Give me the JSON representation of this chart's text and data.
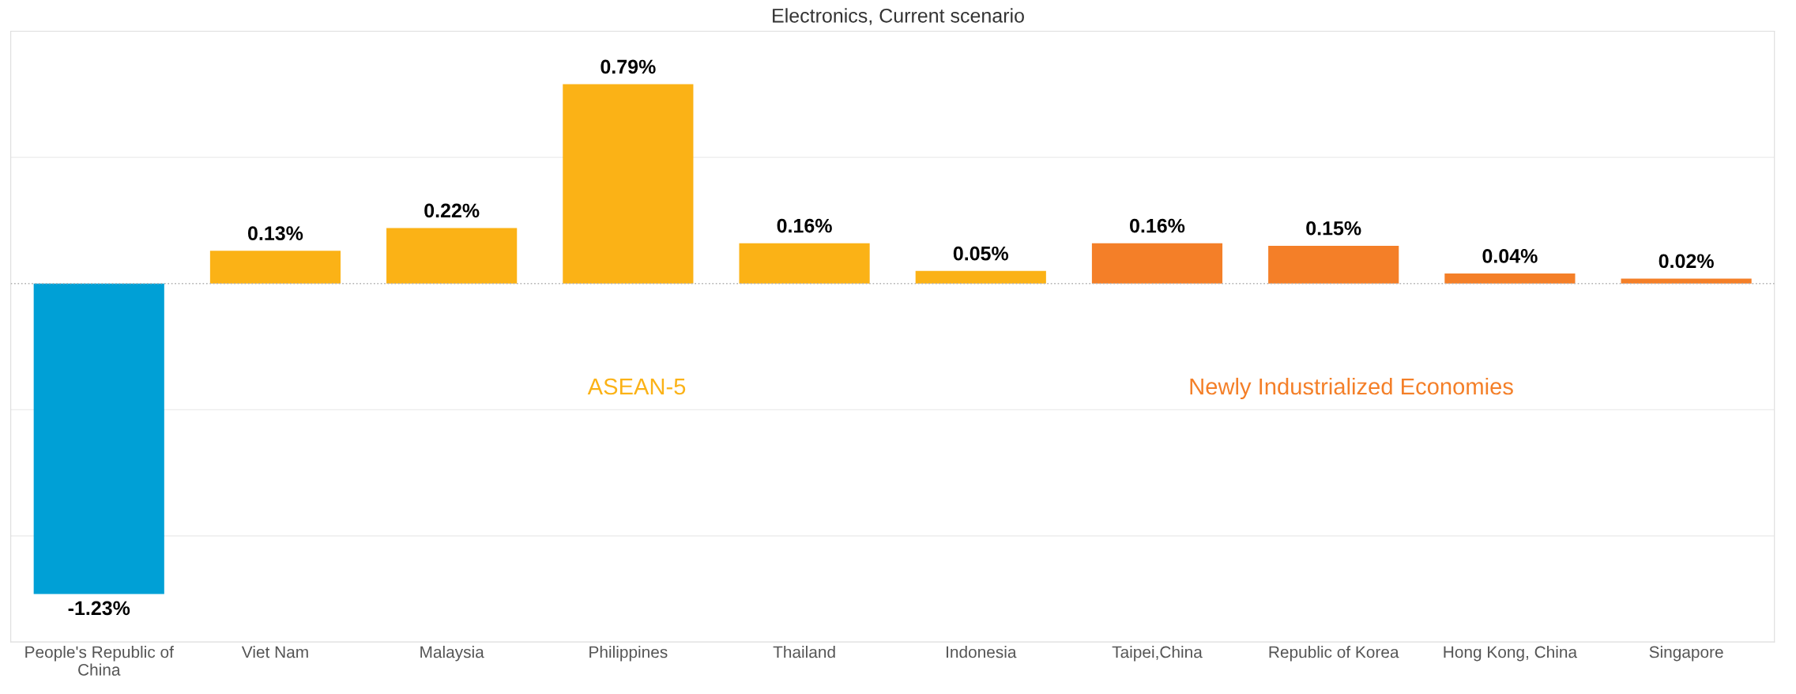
{
  "chart_data": {
    "type": "bar",
    "title": "Electronics, Current scenario",
    "categories": [
      "People's Republic of\nChina",
      "Viet Nam",
      "Malaysia",
      "Philippines",
      "Thailand",
      "Indonesia",
      "Taipei,China",
      "Republic of Korea",
      "Hong Kong, China",
      "Singapore"
    ],
    "values": [
      -1.23,
      0.13,
      0.22,
      0.79,
      0.16,
      0.05,
      0.16,
      0.15,
      0.04,
      0.02
    ],
    "value_labels": [
      "-1.23%",
      "0.13%",
      "0.22%",
      "0.79%",
      "0.16%",
      "0.05%",
      "0.16%",
      "0.15%",
      "0.04%",
      "0.02%"
    ],
    "colors": [
      "#00a0d6",
      "#fbb216",
      "#fbb216",
      "#fbb216",
      "#fbb216",
      "#fbb216",
      "#f47f28",
      "#f47f28",
      "#f47f28",
      "#f47f28"
    ],
    "ylim": [
      -1.42,
      1.0
    ],
    "yticks": [
      {
        "value": -1.0,
        "label": null
      },
      {
        "value": -0.5,
        "label": null
      },
      {
        "value": 0.5,
        "label": null
      }
    ],
    "grid": "y",
    "tick_labels": "x",
    "ref_lines": [
      {
        "axis": "y",
        "value": 0,
        "color": "#b0b0b0",
        "line_style": "dotted"
      }
    ],
    "annotations": [
      "ASEAN-5",
      "Newly Industrialized Economies"
    ]
  }
}
